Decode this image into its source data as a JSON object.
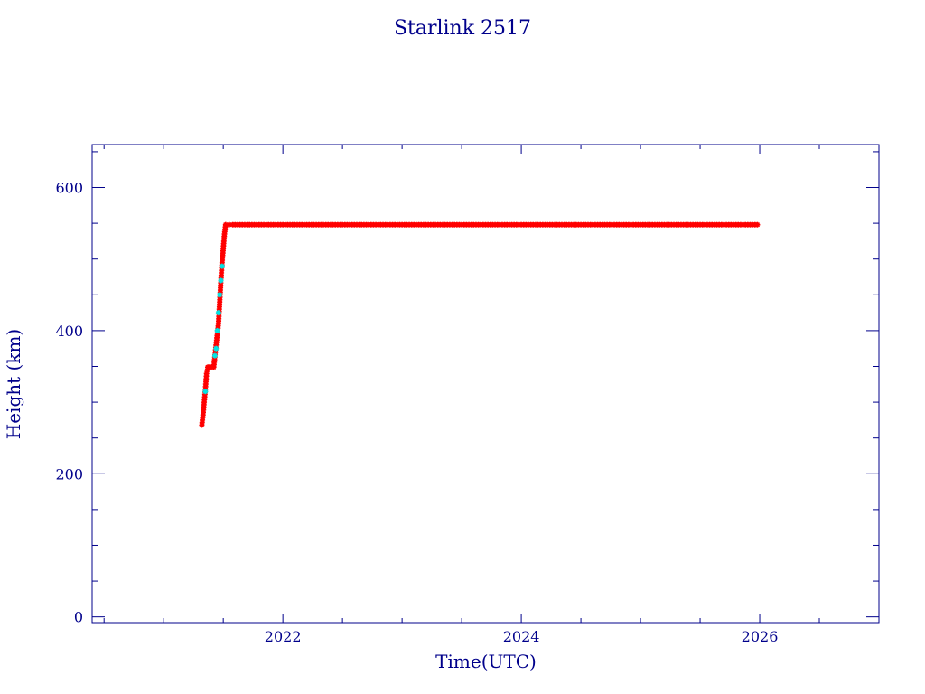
{
  "chart_data": {
    "type": "scatter",
    "title": "Starlink 2517",
    "xlabel": "Time(UTC)",
    "ylabel": "Height (km)",
    "xlim": [
      2020.4,
      2027.0
    ],
    "ylim": [
      -8,
      660
    ],
    "x_ticks": [
      {
        "value": 2022,
        "label": "2022"
      },
      {
        "value": 2024,
        "label": "2024"
      },
      {
        "value": 2026,
        "label": "2026"
      }
    ],
    "y_ticks": [
      {
        "value": 0,
        "label": "0"
      },
      {
        "value": 200,
        "label": "200"
      },
      {
        "value": 400,
        "label": "400"
      },
      {
        "value": 600,
        "label": "600"
      }
    ],
    "grid": false,
    "colors": {
      "axis": "#00008b",
      "primary": "#ff0000",
      "secondary": "#00e5e5"
    },
    "series": [
      {
        "color": "#ff0000",
        "x": [
          2021.32,
          2021.33,
          2021.34,
          2021.35,
          2021.36,
          2021.37,
          2021.38,
          2021.4,
          2021.42,
          2021.44,
          2021.46,
          2021.47,
          2021.48,
          2021.49,
          2021.5,
          2021.51,
          2021.52,
          2021.55,
          2021.58,
          2021.62,
          2021.7,
          2021.8,
          2021.9,
          2022.0,
          2022.2,
          2022.4,
          2022.6,
          2022.8,
          2023.0,
          2023.2,
          2023.4,
          2023.6,
          2023.8,
          2024.0,
          2024.2,
          2024.4,
          2024.6,
          2024.8,
          2025.0,
          2025.2,
          2025.4,
          2025.6,
          2025.8,
          2025.98
        ],
        "y": [
          268,
          282,
          300,
          318,
          340,
          349,
          349,
          349,
          349,
          380,
          410,
          440,
          470,
          495,
          515,
          535,
          548,
          548,
          548,
          548,
          548,
          548,
          548,
          548,
          548,
          548,
          548,
          548,
          548,
          548,
          548,
          548,
          548,
          548,
          548,
          548,
          548,
          548,
          548,
          548,
          548,
          548,
          548,
          548
        ]
      },
      {
        "color": "#00e5e5",
        "x": [
          2021.35,
          2021.43,
          2021.44,
          2021.45,
          2021.46,
          2021.47,
          2021.48,
          2021.49
        ],
        "y": [
          315,
          365,
          375,
          400,
          425,
          450,
          470,
          490
        ]
      }
    ]
  }
}
